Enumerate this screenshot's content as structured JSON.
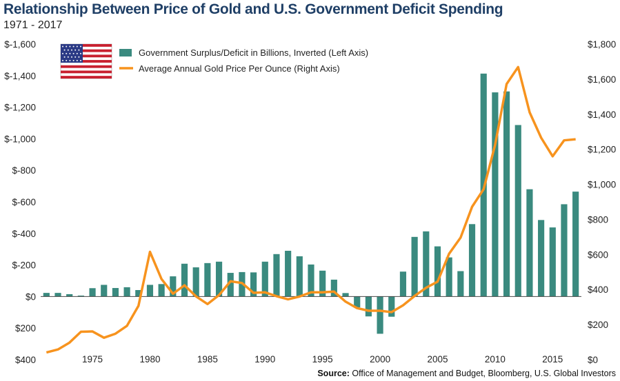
{
  "title": "Relationship Between Price of Gold and U.S. Government Deficit Spending",
  "subtitle": "1971 - 2017",
  "source_label": "Source:",
  "source_text": "Office of Management and Budget, Bloomberg, U.S. Global Investors",
  "colors": {
    "bar": "#3a8a7f",
    "line": "#f7931e",
    "title": "#1f3f66"
  },
  "icon": "us-flag-icon",
  "chart_data": {
    "type": "bar",
    "title": "Relationship Between Price of Gold and U.S. Government Deficit Spending",
    "subtitle": "1971 - 2017",
    "x": [
      1971,
      1972,
      1973,
      1974,
      1975,
      1976,
      1977,
      1978,
      1979,
      1980,
      1981,
      1982,
      1983,
      1984,
      1985,
      1986,
      1987,
      1988,
      1989,
      1990,
      1991,
      1992,
      1993,
      1994,
      1995,
      1996,
      1997,
      1998,
      1999,
      2000,
      2001,
      2002,
      2003,
      2004,
      2005,
      2006,
      2007,
      2008,
      2009,
      2010,
      2011,
      2012,
      2013,
      2014,
      2015,
      2016,
      2017
    ],
    "x_ticks": [
      1975,
      1980,
      1985,
      1990,
      1995,
      2000,
      2005,
      2010,
      2015
    ],
    "left_axis": {
      "ylim": [
        400,
        -1600
      ],
      "ticks": [
        -1600,
        -1400,
        -1200,
        -1000,
        -800,
        -600,
        -400,
        -200,
        0,
        200,
        400
      ],
      "tick_labels": [
        "$-1,600",
        "$-1,400",
        "$-1,200",
        "$-1,000",
        "$-800",
        "$-600",
        "$-400",
        "$-200",
        "$0",
        "$200",
        "$400"
      ]
    },
    "right_axis": {
      "ylim": [
        0,
        1800
      ],
      "ticks": [
        0,
        200,
        400,
        600,
        800,
        1000,
        1200,
        1400,
        1600,
        1800
      ],
      "tick_labels": [
        "$0",
        "$200",
        "$400",
        "$600",
        "$800",
        "$1,000",
        "$1,200",
        "$1,400",
        "$1,600",
        "$1,800"
      ]
    },
    "legend_position": "top-left",
    "grid": false,
    "series": [
      {
        "name": "Government Surplus/Deficit in Billions, Inverted (Left Axis)",
        "type": "bar",
        "axis": "left",
        "values": [
          -23,
          -23,
          -15,
          -6,
          -53,
          -74,
          -54,
          -59,
          -41,
          -74,
          -79,
          -128,
          -208,
          -185,
          -212,
          -221,
          -150,
          -155,
          -153,
          -221,
          -269,
          -290,
          -255,
          -203,
          -164,
          -107,
          -22,
          69,
          126,
          236,
          128,
          -158,
          -378,
          -413,
          -318,
          -248,
          -161,
          -459,
          -1413,
          -1294,
          -1300,
          -1087,
          -680,
          -485,
          -438,
          -585,
          -665
        ]
      },
      {
        "name": "Average Annual Gold Price Per Ounce (Right Axis)",
        "type": "line",
        "axis": "right",
        "values": [
          41,
          58,
          97,
          159,
          161,
          125,
          148,
          193,
          307,
          615,
          460,
          376,
          424,
          361,
          317,
          368,
          447,
          437,
          381,
          384,
          362,
          344,
          360,
          384,
          384,
          388,
          331,
          294,
          279,
          279,
          271,
          310,
          363,
          410,
          445,
          604,
          696,
          872,
          972,
          1225,
          1572,
          1669,
          1411,
          1266,
          1160,
          1251,
          1257
        ]
      }
    ]
  }
}
